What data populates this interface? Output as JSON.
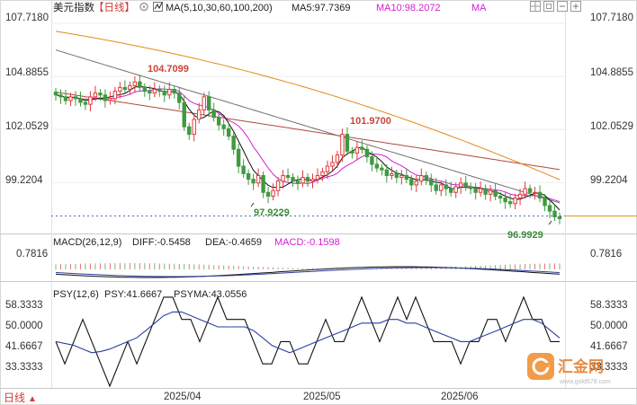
{
  "header": {
    "symbol": "美元指数",
    "period_tag": "【日线】",
    "ma_label": "MA(5,10,30,60,100,200)",
    "ma5_label": "MA5:97.7369",
    "ma10_label": "MA10:98.2072",
    "ma_more_label": "MA"
  },
  "toolbar": {
    "icons": [
      "grid-icon",
      "layers-icon",
      "minus-box-icon",
      "plus-box-icon"
    ]
  },
  "macd": {
    "title": "MACD(26,12,9)",
    "diff": "DIFF:-0.5458",
    "dea": "DEA:-0.4659",
    "macd": "MACD:-0.1598",
    "tick": "0.7816"
  },
  "psy": {
    "title": "PSY(12,6)",
    "psy": "PSY:41.6667",
    "psyma": "PSYMA:43.0556",
    "ticks": [
      "58.3333",
      "50.0000",
      "41.6667",
      "33.3333"
    ]
  },
  "price_ticks": [
    "107.7180",
    "104.8855",
    "102.0529",
    "99.2204"
  ],
  "annotations": {
    "high1": "104.7099",
    "high2": "101.9700",
    "low1": "97.9229",
    "low2": "96.9929"
  },
  "x_ticks": [
    "2025/04",
    "2025/05",
    "2025/06"
  ],
  "footer": {
    "period": "日线",
    "arrow": "▲"
  },
  "watermark": {
    "brand": "汇金网",
    "url": "www.gold678.com"
  },
  "colors": {
    "up": "#e03a3a",
    "down": "#3f9a3f",
    "ma5": "#111111",
    "ma10": "#d21fd2",
    "ma30": "#e58a1a",
    "ma60": "#707070",
    "ma100": "#b04a3a",
    "red_text": "#c8463a",
    "green_text": "#3a8a3a",
    "price_line": "#e39a1b"
  },
  "chart_data": [
    {
      "type": "candlestick",
      "title": "美元指数",
      "period": "daily",
      "x_range": [
        "2025-03-10",
        "2025-06-25"
      ],
      "x_ticks": [
        "2025/04",
        "2025/05",
        "2025/06"
      ],
      "ylim": [
        96.7,
        108.2
      ],
      "y_ticks": [
        99.2204,
        102.0529,
        104.8855,
        107.718
      ],
      "close": [
        103.9,
        103.8,
        103.6,
        103.8,
        103.7,
        103.5,
        103.4,
        103.8,
        104.0,
        103.9,
        103.6,
        103.7,
        104.1,
        104.3,
        104.2,
        104.4,
        104.6,
        104.3,
        104.1,
        104.0,
        104.2,
        104.1,
        103.9,
        104.2,
        104.0,
        103.5,
        102.2,
        101.8,
        102.6,
        103.1,
        103.8,
        103.1,
        102.7,
        102.3,
        102.1,
        101.7,
        101.0,
        100.1,
        99.7,
        99.4,
        99.2,
        99.6,
        98.7,
        98.5,
        98.8,
        99.3,
        99.6,
        99.5,
        99.3,
        99.2,
        99.5,
        99.3,
        99.4,
        99.6,
        99.8,
        100.1,
        100.3,
        100.7,
        101.8,
        100.9,
        100.8,
        101.1,
        101.0,
        100.6,
        100.2,
        100.0,
        99.9,
        99.6,
        99.7,
        99.5,
        99.6,
        99.4,
        99.1,
        99.3,
        99.6,
        99.4,
        99.1,
        98.8,
        99.1,
        98.9,
        98.7,
        99.0,
        99.2,
        99.0,
        98.9,
        98.7,
        98.9,
        98.6,
        98.8,
        98.5,
        98.4,
        98.2,
        98.1,
        98.4,
        98.6,
        98.9,
        98.7,
        98.7,
        98.4,
        98.0,
        97.7,
        97.4,
        97.3
      ]
    },
    {
      "type": "line",
      "title": "MACD(26,12,9)",
      "series": [
        {
          "name": "DIFF",
          "value": -0.5458
        },
        {
          "name": "DEA",
          "value": -0.4659
        },
        {
          "name": "MACD",
          "value": -0.1598
        }
      ],
      "y_ticks": [
        0.7816
      ]
    },
    {
      "type": "line",
      "title": "PSY(12,6)",
      "ylim": [
        25,
        62
      ],
      "y_ticks": [
        33.3333,
        41.6667,
        50.0,
        58.3333
      ],
      "series": [
        {
          "name": "PSY",
          "values": [
            41.67,
            33.33,
            41.67,
            50.0,
            41.67,
            33.33,
            25.0,
            33.33,
            41.67,
            33.33,
            41.67,
            50.0,
            58.33,
            58.33,
            50.0,
            50.0,
            41.67,
            50.0,
            58.33,
            50.0,
            50.0,
            50.0,
            41.67,
            33.33,
            33.33,
            41.67,
            41.67,
            33.33,
            33.33,
            41.67,
            50.0,
            41.67,
            41.67,
            50.0,
            58.33,
            50.0,
            41.67,
            50.0,
            58.33,
            50.0,
            58.33,
            50.0,
            41.67,
            41.67,
            41.67,
            33.33,
            41.67,
            41.67,
            50.0,
            50.0,
            41.67,
            50.0,
            58.33,
            50.0,
            50.0,
            41.67,
            41.67
          ]
        },
        {
          "name": "PSYMA",
          "values": [
            41.67,
            41.0,
            40.3,
            38.9,
            37.5,
            38.0,
            38.9,
            40.3,
            41.7,
            43.1,
            45.8,
            48.6,
            51.4,
            52.8,
            52.8,
            51.4,
            50.0,
            48.6,
            47.2,
            47.2,
            47.2,
            47.2,
            45.8,
            43.1,
            40.3,
            38.9,
            37.5,
            38.9,
            40.3,
            41.7,
            43.1,
            44.4,
            45.8,
            47.2,
            48.6,
            48.6,
            48.6,
            50.0,
            50.0,
            48.6,
            48.6,
            47.2,
            45.8,
            44.4,
            43.1,
            41.7,
            41.7,
            43.1,
            44.4,
            45.8,
            47.2,
            48.6,
            50.0,
            50.0,
            48.6,
            45.8,
            43.06
          ]
        }
      ]
    }
  ]
}
